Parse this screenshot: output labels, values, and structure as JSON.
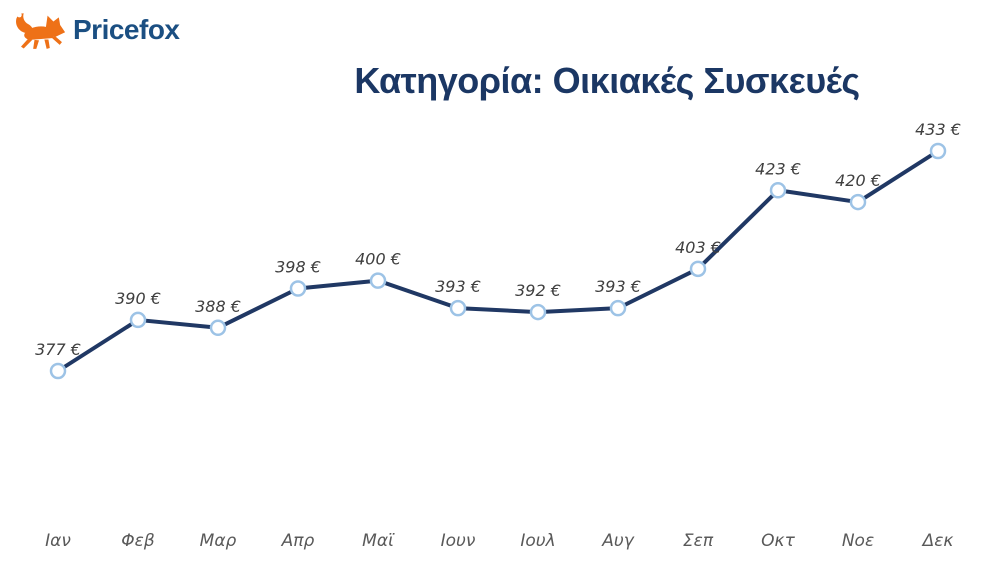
{
  "logo": {
    "brand": "Pricefox"
  },
  "colors": {
    "brand_orange": "#EE7117",
    "brand_blue": "#1B4F82",
    "title_navy": "#1B3764"
  },
  "chart_data": {
    "type": "line",
    "title": "Κατηγορία: Οικιακές Συσκευές",
    "categories": [
      "Ιαν",
      "Φεβ",
      "Μαρ",
      "Απρ",
      "Μαϊ",
      "Ιουν",
      "Ιουλ",
      "Αυγ",
      "Σεπ",
      "Οκτ",
      "Νοε",
      "Δεκ"
    ],
    "values": [
      377,
      390,
      388,
      398,
      400,
      393,
      392,
      393,
      403,
      423,
      420,
      433
    ],
    "unit": "€",
    "xlabel": "",
    "ylabel": "",
    "ylim": [
      370,
      440
    ],
    "grid": false,
    "legend_position": "none",
    "axes_visible": false,
    "line_color": "#203864",
    "marker_fill": "#FFFFFF",
    "marker_stroke": "#9DC3E6",
    "value_label_color": "#3F3F3F",
    "axis_label_color": "#595959"
  }
}
